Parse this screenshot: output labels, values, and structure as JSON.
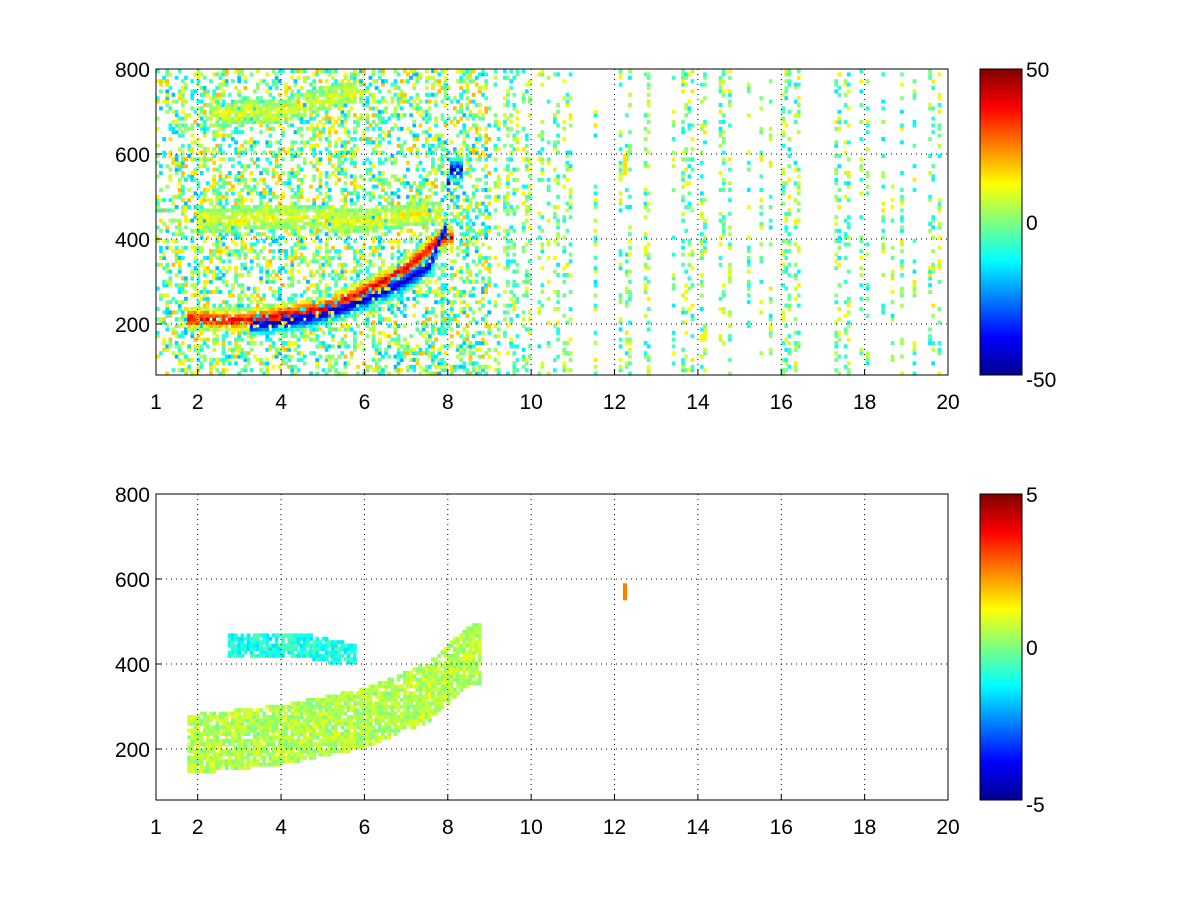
{
  "chart_data": [
    {
      "type": "heatmap",
      "title": "",
      "xlabel": "",
      "ylabel": "",
      "xlim": [
        1,
        20
      ],
      "ylim": [
        80,
        800
      ],
      "x_ticks": [
        "1",
        "2",
        "4",
        "6",
        "8",
        "10",
        "12",
        "14",
        "16",
        "18",
        "20"
      ],
      "y_ticks": [
        "200",
        "400",
        "600",
        "800"
      ],
      "grid": true,
      "colormap": "jet",
      "background": "#ffffff",
      "colorbar": {
        "min": -50,
        "max": 50,
        "tick_labels": [
          "50",
          "0",
          "-50"
        ]
      },
      "features": [
        {
          "description": "positive band (red)",
          "points": [
            [
              2,
              210
            ],
            [
              3,
              205
            ],
            [
              4,
              218
            ],
            [
              5,
              235
            ],
            [
              6,
              275
            ],
            [
              7,
              330
            ],
            [
              7.8,
              400
            ]
          ],
          "value": 40
        },
        {
          "description": "negative band (blue)",
          "points": [
            [
              3.5,
              195
            ],
            [
              4.5,
              210
            ],
            [
              5.5,
              235
            ],
            [
              6.5,
              275
            ],
            [
              7.5,
              330
            ],
            [
              7.9,
              420
            ],
            [
              8.0,
              560
            ]
          ],
          "value": -45
        },
        {
          "description": "upper yellow band",
          "points": [
            [
              2.2,
              440
            ],
            [
              4,
              450
            ],
            [
              6,
              440
            ],
            [
              7.5,
              460
            ]
          ],
          "value": 12
        },
        {
          "description": "top faint band",
          "points": [
            [
              2.5,
              690
            ],
            [
              4,
              700
            ],
            [
              5.5,
              740
            ]
          ],
          "value": 10
        }
      ],
      "isolated_features": [
        {
          "x": 12.25,
          "y_range": [
            550,
            600
          ],
          "value": 15
        }
      ]
    },
    {
      "type": "heatmap",
      "title": "",
      "xlabel": "",
      "ylabel": "",
      "xlim": [
        1,
        20
      ],
      "ylim": [
        80,
        800
      ],
      "x_ticks": [
        "1",
        "2",
        "4",
        "6",
        "8",
        "10",
        "12",
        "14",
        "16",
        "18",
        "20"
      ],
      "y_ticks": [
        "200",
        "400",
        "600",
        "800"
      ],
      "grid": true,
      "colormap": "jet",
      "background": "#ffffff",
      "colorbar": {
        "min": -5,
        "max": 5,
        "tick_labels": [
          "5",
          "0",
          "-5"
        ]
      },
      "features": [
        {
          "description": "near-zero region following lower band",
          "points": [
            [
              2,
              210
            ],
            [
              4,
              230
            ],
            [
              6,
              270
            ],
            [
              7.5,
              330
            ],
            [
              8.5,
              420
            ]
          ],
          "value": 0.5
        },
        {
          "description": "mid-height cyan band",
          "points": [
            [
              3,
              440
            ],
            [
              4.5,
              440
            ],
            [
              5.5,
              420
            ]
          ],
          "value": -1
        }
      ],
      "isolated_features": [
        {
          "x": 12.25,
          "y_range": [
            550,
            590
          ],
          "value": 2.5
        }
      ]
    }
  ]
}
